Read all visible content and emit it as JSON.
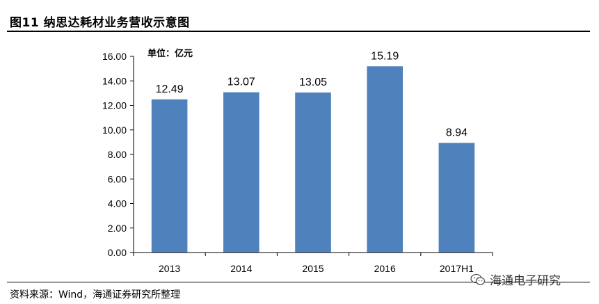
{
  "figure": {
    "title": "图11 纳思达耗材业务营收示意图",
    "source": "资料来源：Wind，海通证券研究所整理",
    "watermark": "海通电子研究",
    "watermark_icon": "wechat-icon"
  },
  "chart_data": {
    "type": "bar",
    "unit_label": "单位：亿元",
    "categories": [
      "2013",
      "2014",
      "2015",
      "2016",
      "2017H1"
    ],
    "values": [
      12.49,
      13.07,
      13.05,
      15.19,
      8.94
    ],
    "data_labels": [
      "12.49",
      "13.07",
      "13.05",
      "15.19",
      "8.94"
    ],
    "ylim": [
      0,
      16
    ],
    "yticks": [
      "0.00",
      "2.00",
      "4.00",
      "6.00",
      "8.00",
      "10.00",
      "12.00",
      "14.00",
      "16.00"
    ],
    "bar_color": "#4F81BD",
    "grid": false,
    "legend": "none"
  }
}
